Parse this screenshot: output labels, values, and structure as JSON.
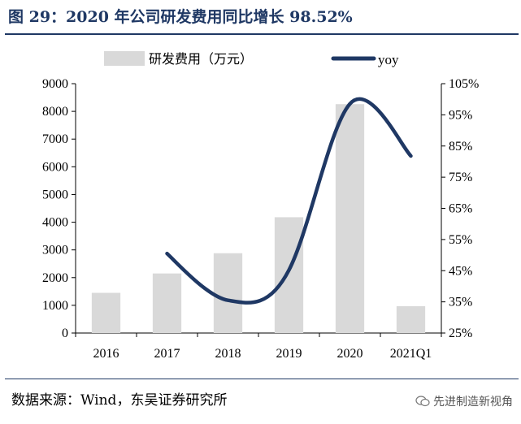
{
  "figure": {
    "title": "图 29：2020 年公司研发费用同比增长 98.52%",
    "source_note": "数据来源：Wind，东吴证券研究所",
    "watermark": "先进制造新视角",
    "watermark_icon": "wechat-icon"
  },
  "colors": {
    "title": "#1f3864",
    "bar": "#d9d9d9",
    "line": "#1f3864"
  },
  "chart_data": {
    "type": "bar",
    "categories": [
      "2016",
      "2017",
      "2018",
      "2019",
      "2020",
      "2021Q1"
    ],
    "series": [
      {
        "name": "研发费用（万元）",
        "type": "bar",
        "axis": "left",
        "values": [
          1450,
          2150,
          2880,
          4180,
          8260,
          970
        ]
      },
      {
        "name": "yoy",
        "type": "line",
        "axis": "right",
        "smooth": true,
        "values": [
          null,
          50.5,
          35.5,
          45.2,
          98.52,
          81.8
        ]
      }
    ],
    "y_left": {
      "min": 0,
      "max": 9000,
      "step": 1000,
      "tick_labels": [
        "0",
        "1000",
        "2000",
        "3000",
        "4000",
        "5000",
        "6000",
        "7000",
        "8000",
        "9000"
      ]
    },
    "y_right": {
      "min": 25,
      "max": 105,
      "step": 10,
      "tick_labels": [
        "25%",
        "35%",
        "45%",
        "55%",
        "65%",
        "75%",
        "85%",
        "95%",
        "105%"
      ]
    },
    "grid": false,
    "legend_position": "top"
  }
}
